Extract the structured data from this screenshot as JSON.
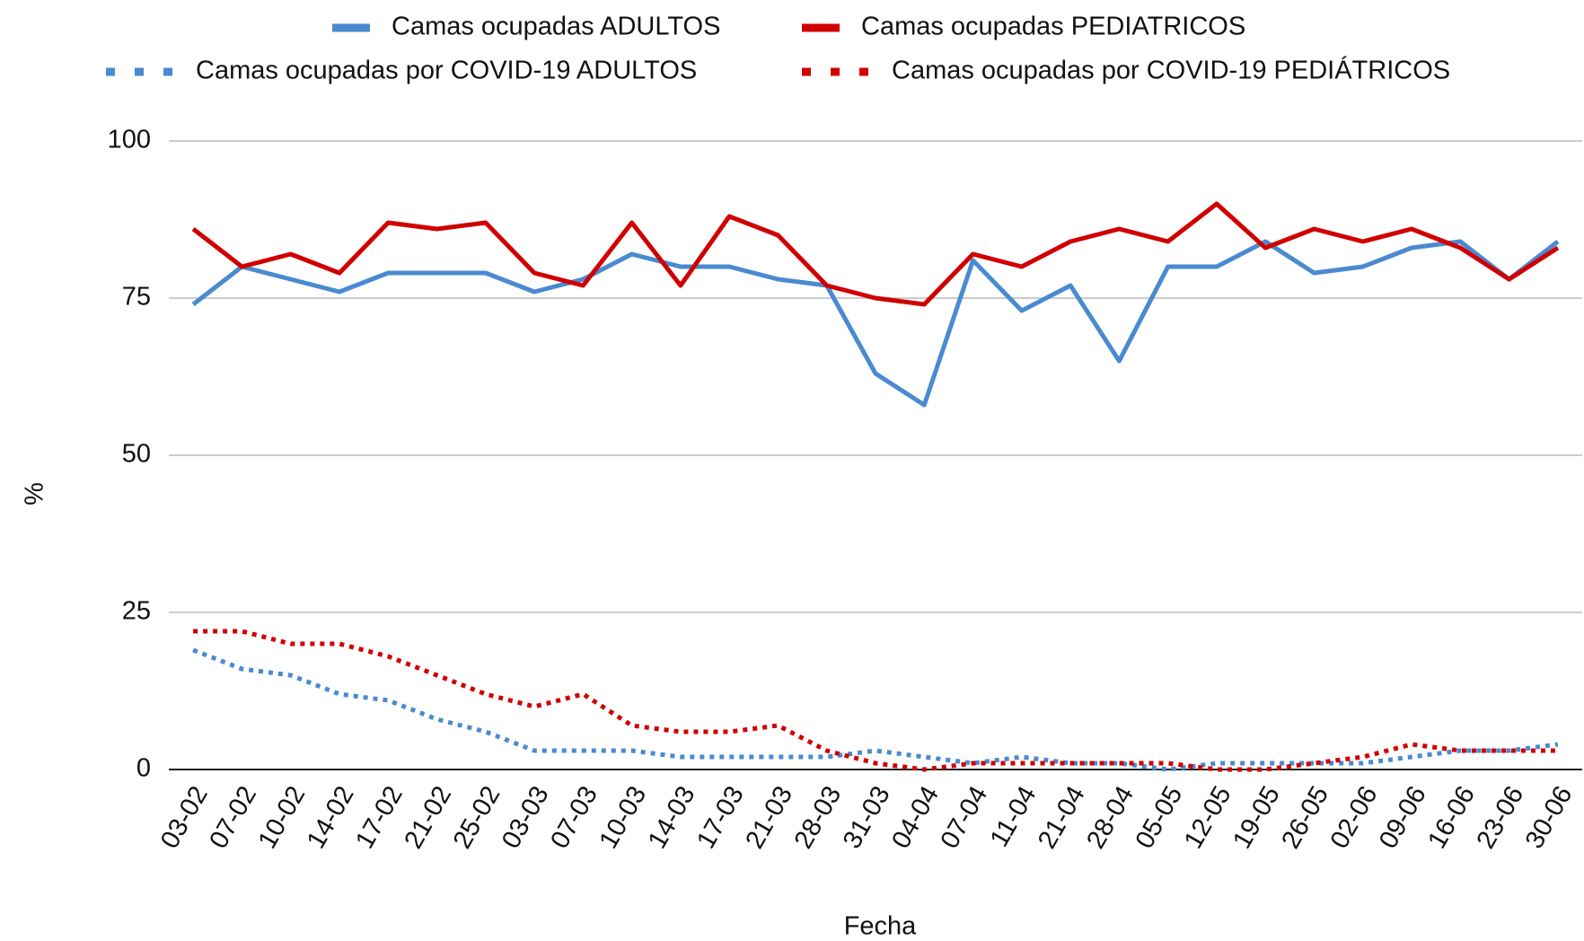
{
  "chart_data": {
    "type": "line",
    "x_label": "Fecha",
    "y_label": "%",
    "categories": [
      "03-02",
      "07-02",
      "10-02",
      "14-02",
      "17-02",
      "21-02",
      "25-02",
      "03-03",
      "07-03",
      "10-03",
      "14-03",
      "17-03",
      "21-03",
      "28-03",
      "31-03",
      "04-04",
      "07-04",
      "11-04",
      "21-04",
      "28-04",
      "05-05",
      "12-05",
      "19-05",
      "26-05",
      "02-06",
      "09-06",
      "16-06",
      "23-06",
      "30-06"
    ],
    "series": [
      {
        "name": "Camas ocupadas ADULTOS",
        "color": "#4a8ad0",
        "style": "solid",
        "values": [
          74,
          80,
          78,
          76,
          79,
          79,
          79,
          76,
          78,
          82,
          80,
          80,
          78,
          77,
          63,
          58,
          81,
          73,
          77,
          65,
          80,
          80,
          84,
          79,
          80,
          83,
          84,
          78,
          84
        ]
      },
      {
        "name": "Camas ocupadas PEDIATRICOS",
        "color": "#d00000",
        "style": "solid",
        "values": [
          86,
          80,
          82,
          79,
          87,
          86,
          87,
          79,
          77,
          87,
          77,
          88,
          85,
          77,
          75,
          74,
          82,
          80,
          84,
          86,
          84,
          90,
          83,
          86,
          84,
          86,
          83,
          78,
          83
        ]
      },
      {
        "name": "Camas ocupadas por COVID-19 ADULTOS",
        "color": "#4a8ad0",
        "style": "dotted",
        "values": [
          19,
          16,
          15,
          12,
          11,
          8,
          6,
          3,
          3,
          3,
          2,
          2,
          2,
          2,
          3,
          2,
          1,
          2,
          1,
          1,
          0,
          1,
          1,
          1,
          1,
          2,
          3,
          3,
          4
        ]
      },
      {
        "name": "Camas ocupadas por COVID-19 PEDIÁTRICOS",
        "color": "#d00000",
        "style": "dotted",
        "values": [
          22,
          22,
          20,
          20,
          18,
          15,
          12,
          10,
          12,
          7,
          6,
          6,
          7,
          3,
          1,
          0,
          1,
          1,
          1,
          1,
          1,
          0,
          0,
          1,
          2,
          4,
          3,
          3,
          3
        ]
      }
    ],
    "ylim": [
      0,
      100
    ],
    "yticks": [
      0,
      25,
      50,
      75,
      100
    ],
    "grid": true,
    "legend": "top"
  }
}
